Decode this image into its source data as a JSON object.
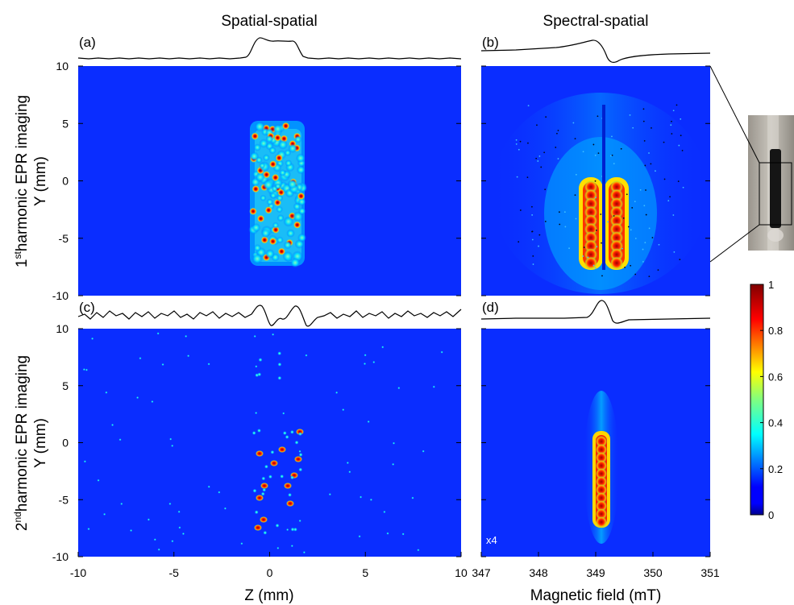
{
  "figure": {
    "column_titles": [
      "Spatial-spatial",
      "Spectral-spatial"
    ],
    "row_labels": [
      {
        "line1_pre": "1",
        "sup": "st",
        "line1_post": "harmonic EPR imaging",
        "line2": "Y (mm)"
      },
      {
        "line1_pre": "2",
        "sup": "nd",
        "line1_post": "harmonic EPR imaging",
        "line2": "Y (mm)"
      }
    ],
    "panel_tags": [
      "(a)",
      "(b)",
      "(c)",
      "(d)"
    ],
    "x_labels": {
      "spatial": "Z (mm)",
      "spectral": "Magnetic field (mT)"
    },
    "x_ticks_spatial": [
      "-10",
      "-5",
      "0",
      "5",
      "10"
    ],
    "x_ticks_spectral": [
      "347",
      "348",
      "349",
      "350",
      "351"
    ],
    "y_ticks": [
      "10",
      "5",
      "0",
      "-5",
      "-10"
    ],
    "scale_note": "x4",
    "colorbar": {
      "ticks": [
        "1",
        "0.8",
        "0.6",
        "0.4",
        "0.2",
        "0"
      ],
      "colormap": "jet"
    },
    "colors": {
      "background_blue": "#0a2dff",
      "photo_frame": "#000000"
    }
  },
  "chart_data": [
    {
      "type": "heatmap",
      "panel": "(a)",
      "xlabel": "Z (mm)",
      "ylabel": "Y (mm)",
      "xlim": [
        -10,
        10
      ],
      "ylim": [
        -10,
        10
      ],
      "description_values": {
        "sample_z_range": [
          -1.2,
          1.8
        ],
        "sample_y_range": [
          -7.5,
          6.5
        ]
      }
    },
    {
      "type": "heatmap",
      "panel": "(b)",
      "xlabel": "Magnetic field (mT)",
      "ylabel": "Y (mm)",
      "xlim": [
        347,
        351
      ],
      "ylim": [
        -10,
        10
      ],
      "description_values": {
        "line_centers_mT": [
          348.9,
          349.35
        ],
        "y_range": [
          -7.5,
          0.8
        ]
      }
    },
    {
      "type": "heatmap",
      "panel": "(c)",
      "xlabel": "Z (mm)",
      "ylabel": "Y (mm)",
      "xlim": [
        -10,
        10
      ],
      "ylim": [
        -10,
        10
      ]
    },
    {
      "type": "heatmap",
      "panel": "(d)",
      "xlabel": "Magnetic field (mT)",
      "ylabel": "Y (mm)",
      "xlim": [
        347,
        351
      ],
      "ylim": [
        -10,
        10
      ],
      "scale": "x4",
      "description_values": {
        "line_center_mT": 349.15,
        "y_range": [
          -7.5,
          3.5
        ]
      }
    },
    {
      "type": "line",
      "panel": "colorbar",
      "ylim": [
        0,
        1
      ],
      "ticks": [
        0,
        0.2,
        0.4,
        0.6,
        0.8,
        1
      ]
    }
  ]
}
